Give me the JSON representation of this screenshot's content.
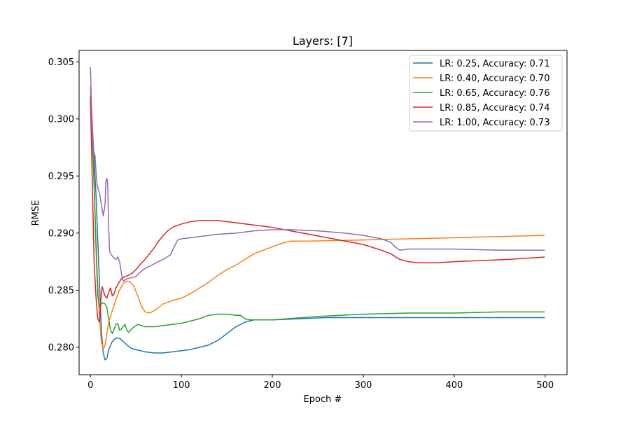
{
  "chart_data": {
    "type": "line",
    "title": "Layers: [7]",
    "xlabel": "Epoch #",
    "ylabel": "RMSE",
    "xlim": [
      -12.5,
      524
    ],
    "ylim": [
      0.2776,
      0.306
    ],
    "x_ticks": [
      0,
      100,
      200,
      300,
      400,
      500
    ],
    "x_tick_labels": [
      "0",
      "100",
      "200",
      "300",
      "400",
      "500"
    ],
    "y_ticks": [
      0.28,
      0.285,
      0.29,
      0.295,
      0.3,
      0.305
    ],
    "y_tick_labels": [
      "0.280",
      "0.285",
      "0.290",
      "0.295",
      "0.300",
      "0.305"
    ],
    "grid": false,
    "legend_position": "upper right",
    "series": [
      {
        "name": "LR: 0.25, Accuracy: 0.71",
        "color": "#1f77b4",
        "points": [
          [
            0,
            0.3025
          ],
          [
            2,
            0.2995
          ],
          [
            4,
            0.2965
          ],
          [
            6,
            0.2935
          ],
          [
            8,
            0.2895
          ],
          [
            10,
            0.2855
          ],
          [
            12,
            0.2815
          ],
          [
            14,
            0.2795
          ],
          [
            16,
            0.2789
          ],
          [
            18,
            0.279
          ],
          [
            20,
            0.2798
          ],
          [
            24,
            0.2805
          ],
          [
            28,
            0.2808
          ],
          [
            32,
            0.2808
          ],
          [
            36,
            0.2805
          ],
          [
            40,
            0.2802
          ],
          [
            45,
            0.2799
          ],
          [
            50,
            0.2798
          ],
          [
            55,
            0.2797
          ],
          [
            60,
            0.2796
          ],
          [
            70,
            0.2795
          ],
          [
            80,
            0.2795
          ],
          [
            90,
            0.2796
          ],
          [
            100,
            0.2797
          ],
          [
            110,
            0.2798
          ],
          [
            120,
            0.28
          ],
          [
            130,
            0.2802
          ],
          [
            140,
            0.2806
          ],
          [
            150,
            0.2812
          ],
          [
            160,
            0.2818
          ],
          [
            170,
            0.2822
          ],
          [
            180,
            0.2824
          ],
          [
            200,
            0.2824
          ],
          [
            230,
            0.2825
          ],
          [
            260,
            0.2826
          ],
          [
            300,
            0.2826
          ],
          [
            350,
            0.2826
          ],
          [
            400,
            0.2826
          ],
          [
            450,
            0.2826
          ],
          [
            499,
            0.2826
          ]
        ]
      },
      {
        "name": "LR: 0.40, Accuracy: 0.70",
        "color": "#ff7f0e",
        "points": [
          [
            0,
            0.3028
          ],
          [
            2,
            0.2995
          ],
          [
            4,
            0.2945
          ],
          [
            6,
            0.2895
          ],
          [
            8,
            0.2855
          ],
          [
            10,
            0.2825
          ],
          [
            12,
            0.2805
          ],
          [
            14,
            0.2798
          ],
          [
            16,
            0.2802
          ],
          [
            18,
            0.2812
          ],
          [
            20,
            0.2822
          ],
          [
            24,
            0.2832
          ],
          [
            28,
            0.2842
          ],
          [
            32,
            0.285
          ],
          [
            36,
            0.2856
          ],
          [
            40,
            0.2858
          ],
          [
            44,
            0.2857
          ],
          [
            48,
            0.2853
          ],
          [
            52,
            0.2845
          ],
          [
            56,
            0.2836
          ],
          [
            60,
            0.2831
          ],
          [
            65,
            0.283
          ],
          [
            70,
            0.2832
          ],
          [
            80,
            0.2838
          ],
          [
            90,
            0.2841
          ],
          [
            100,
            0.2843
          ],
          [
            110,
            0.2847
          ],
          [
            120,
            0.2852
          ],
          [
            130,
            0.2857
          ],
          [
            140,
            0.2863
          ],
          [
            150,
            0.2868
          ],
          [
            160,
            0.2872
          ],
          [
            170,
            0.2877
          ],
          [
            180,
            0.2882
          ],
          [
            200,
            0.2888
          ],
          [
            210,
            0.2891
          ],
          [
            220,
            0.2893
          ],
          [
            240,
            0.2893
          ],
          [
            300,
            0.2894
          ],
          [
            350,
            0.2895
          ],
          [
            400,
            0.2896
          ],
          [
            450,
            0.2897
          ],
          [
            499,
            0.2898
          ]
        ]
      },
      {
        "name": "LR: 0.65, Accuracy: 0.76",
        "color": "#2ca02c",
        "points": [
          [
            0,
            0.302
          ],
          [
            2,
            0.2985
          ],
          [
            4,
            0.294
          ],
          [
            6,
            0.289
          ],
          [
            8,
            0.2845
          ],
          [
            10,
            0.2835
          ],
          [
            12,
            0.2838
          ],
          [
            14,
            0.2839
          ],
          [
            16,
            0.2838
          ],
          [
            18,
            0.2835
          ],
          [
            20,
            0.2825
          ],
          [
            22,
            0.2815
          ],
          [
            24,
            0.2812
          ],
          [
            26,
            0.2816
          ],
          [
            28,
            0.282
          ],
          [
            30,
            0.2821
          ],
          [
            32,
            0.2815
          ],
          [
            34,
            0.2816
          ],
          [
            36,
            0.2818
          ],
          [
            38,
            0.282
          ],
          [
            40,
            0.2815
          ],
          [
            42,
            0.2813
          ],
          [
            44,
            0.2815
          ],
          [
            48,
            0.2818
          ],
          [
            52,
            0.282
          ],
          [
            56,
            0.2819
          ],
          [
            60,
            0.2818
          ],
          [
            65,
            0.2818
          ],
          [
            70,
            0.2818
          ],
          [
            80,
            0.2819
          ],
          [
            90,
            0.282
          ],
          [
            100,
            0.2821
          ],
          [
            110,
            0.2823
          ],
          [
            120,
            0.2825
          ],
          [
            130,
            0.2828
          ],
          [
            140,
            0.2829
          ],
          [
            150,
            0.2829
          ],
          [
            160,
            0.2828
          ],
          [
            165,
            0.2828
          ],
          [
            170,
            0.2825
          ],
          [
            175,
            0.2824
          ],
          [
            180,
            0.2824
          ],
          [
            200,
            0.2824
          ],
          [
            250,
            0.2827
          ],
          [
            300,
            0.2829
          ],
          [
            350,
            0.283
          ],
          [
            400,
            0.283
          ],
          [
            450,
            0.2831
          ],
          [
            499,
            0.2831
          ]
        ]
      },
      {
        "name": "LR: 0.85, Accuracy: 0.74",
        "color": "#d62728",
        "points": [
          [
            0,
            0.3018
          ],
          [
            2,
            0.2945
          ],
          [
            4,
            0.2875
          ],
          [
            6,
            0.2845
          ],
          [
            8,
            0.2825
          ],
          [
            10,
            0.2822
          ],
          [
            11,
            0.2835
          ],
          [
            12,
            0.2848
          ],
          [
            13,
            0.2853
          ],
          [
            14,
            0.285
          ],
          [
            16,
            0.2845
          ],
          [
            18,
            0.2843
          ],
          [
            20,
            0.2848
          ],
          [
            22,
            0.2852
          ],
          [
            24,
            0.2845
          ],
          [
            26,
            0.2847
          ],
          [
            28,
            0.2852
          ],
          [
            30,
            0.2855
          ],
          [
            34,
            0.286
          ],
          [
            38,
            0.2862
          ],
          [
            42,
            0.2863
          ],
          [
            46,
            0.2865
          ],
          [
            50,
            0.2868
          ],
          [
            55,
            0.2873
          ],
          [
            60,
            0.2877
          ],
          [
            65,
            0.2882
          ],
          [
            70,
            0.2887
          ],
          [
            75,
            0.2893
          ],
          [
            80,
            0.2898
          ],
          [
            85,
            0.2902
          ],
          [
            90,
            0.2905
          ],
          [
            100,
            0.2908
          ],
          [
            110,
            0.291
          ],
          [
            120,
            0.2911
          ],
          [
            130,
            0.2911
          ],
          [
            140,
            0.2911
          ],
          [
            150,
            0.291
          ],
          [
            160,
            0.2909
          ],
          [
            180,
            0.2907
          ],
          [
            200,
            0.2905
          ],
          [
            220,
            0.2902
          ],
          [
            240,
            0.2899
          ],
          [
            260,
            0.2896
          ],
          [
            280,
            0.2893
          ],
          [
            300,
            0.289
          ],
          [
            320,
            0.2885
          ],
          [
            330,
            0.2882
          ],
          [
            340,
            0.2877
          ],
          [
            350,
            0.2875
          ],
          [
            360,
            0.2874
          ],
          [
            380,
            0.2874
          ],
          [
            400,
            0.2875
          ],
          [
            430,
            0.2876
          ],
          [
            460,
            0.2877
          ],
          [
            499,
            0.2879
          ]
        ]
      },
      {
        "name": "LR: 1.00, Accuracy: 0.73",
        "color": "#9467bd",
        "points": [
          [
            0,
            0.3045
          ],
          [
            1,
            0.3015
          ],
          [
            2,
            0.2985
          ],
          [
            3,
            0.2972
          ],
          [
            4,
            0.297
          ],
          [
            5,
            0.2968
          ],
          [
            6,
            0.2955
          ],
          [
            7,
            0.2945
          ],
          [
            8,
            0.294
          ],
          [
            10,
            0.2935
          ],
          [
            12,
            0.2925
          ],
          [
            14,
            0.2915
          ],
          [
            16,
            0.2925
          ],
          [
            17,
            0.2945
          ],
          [
            18,
            0.2948
          ],
          [
            19,
            0.2942
          ],
          [
            20,
            0.2905
          ],
          [
            21,
            0.2885
          ],
          [
            22,
            0.2882
          ],
          [
            24,
            0.288
          ],
          [
            26,
            0.2878
          ],
          [
            28,
            0.2877
          ],
          [
            30,
            0.2879
          ],
          [
            32,
            0.2875
          ],
          [
            34,
            0.2865
          ],
          [
            36,
            0.2858
          ],
          [
            38,
            0.2859
          ],
          [
            40,
            0.286
          ],
          [
            45,
            0.2861
          ],
          [
            50,
            0.2862
          ],
          [
            55,
            0.2866
          ],
          [
            60,
            0.2869
          ],
          [
            70,
            0.2873
          ],
          [
            80,
            0.2877
          ],
          [
            88,
            0.2881
          ],
          [
            92,
            0.2888
          ],
          [
            96,
            0.2894
          ],
          [
            100,
            0.2895
          ],
          [
            110,
            0.2896
          ],
          [
            120,
            0.2897
          ],
          [
            130,
            0.2898
          ],
          [
            140,
            0.2899
          ],
          [
            160,
            0.29
          ],
          [
            180,
            0.2902
          ],
          [
            200,
            0.2903
          ],
          [
            220,
            0.2903
          ],
          [
            250,
            0.2902
          ],
          [
            280,
            0.29
          ],
          [
            300,
            0.2898
          ],
          [
            320,
            0.2895
          ],
          [
            330,
            0.2892
          ],
          [
            335,
            0.2888
          ],
          [
            340,
            0.2885
          ],
          [
            350,
            0.2886
          ],
          [
            360,
            0.2886
          ],
          [
            400,
            0.2886
          ],
          [
            450,
            0.2885
          ],
          [
            499,
            0.2885
          ]
        ]
      }
    ]
  }
}
